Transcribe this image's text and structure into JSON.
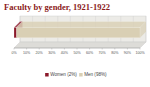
{
  "chart_data": {
    "type": "bar",
    "title": "Faculty by gender, 1921-1922",
    "orientation": "horizontal",
    "stacked": true,
    "grid": true,
    "legend": "bottom",
    "categories": [
      null
    ],
    "series": [
      {
        "name": "Women (2%)",
        "color": "#8b1a2b",
        "values": [
          2
        ]
      },
      {
        "name": "Men (98%)",
        "color": "#d9cfb4",
        "values": [
          98
        ]
      }
    ],
    "xlim": [
      0,
      100
    ],
    "xticks": [
      {
        "value": 0,
        "label": "0%"
      },
      {
        "value": 10,
        "label": "10%"
      },
      {
        "value": 20,
        "label": "20%"
      },
      {
        "value": 30,
        "label": "30%"
      },
      {
        "value": 40,
        "label": "40%"
      },
      {
        "value": 50,
        "label": "50%"
      },
      {
        "value": 60,
        "label": "60%"
      },
      {
        "value": 70,
        "label": "70%"
      },
      {
        "value": 80,
        "label": "80%"
      },
      {
        "value": 90,
        "label": "90%"
      },
      {
        "value": 100,
        "label": "100%"
      }
    ]
  }
}
